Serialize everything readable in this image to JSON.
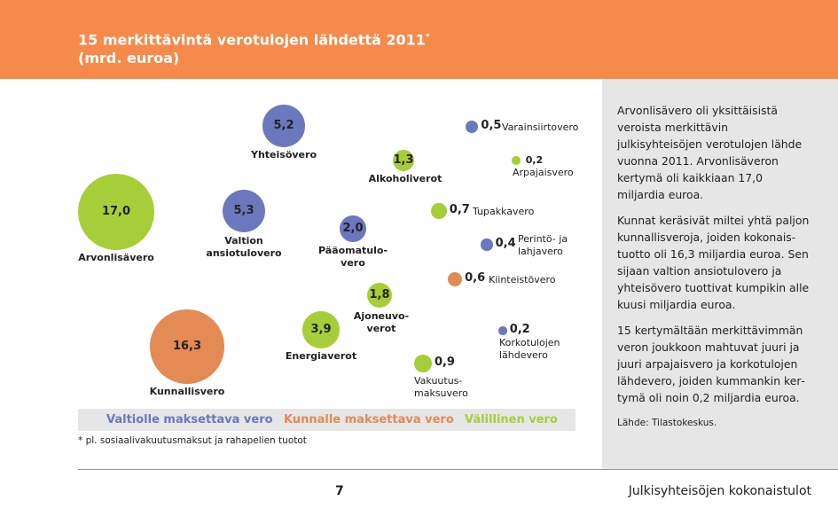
{
  "header": {
    "title_line1": "15 merkittävintä verotulojen lähdettä 2011",
    "title_mark": "*",
    "title_line2": "(mrd. euroa)"
  },
  "colors": {
    "header": "#F58A4B",
    "state": "#6B78BE",
    "municipal": "#E38A55",
    "indirect": "#A6CE39",
    "sidebar": "#E6E6E6"
  },
  "chart_data": {
    "type": "bubble",
    "unit": "mrd. euroa",
    "items": [
      {
        "name": "Arvonlisävero",
        "value": 17.0,
        "label": "17,0",
        "category": "indirect"
      },
      {
        "name": "Kunnallisvero",
        "value": 16.3,
        "label": "16,3",
        "category": "municipal"
      },
      {
        "name": "Valtion ansiotulovero",
        "value": 5.3,
        "label": "5,3",
        "category": "state"
      },
      {
        "name": "Yhteisövero",
        "value": 5.2,
        "label": "5,2",
        "category": "state"
      },
      {
        "name": "Energiaverot",
        "value": 3.9,
        "label": "3,9",
        "category": "indirect"
      },
      {
        "name": "Pääomatulovero",
        "value": 2.0,
        "label": "2,0",
        "category": "state"
      },
      {
        "name": "Ajoneuvoverot",
        "value": 1.8,
        "label": "1,8",
        "category": "indirect"
      },
      {
        "name": "Alkoholiverot",
        "value": 1.3,
        "label": "1,3",
        "category": "indirect"
      },
      {
        "name": "Vakuutusmaksuvero",
        "value": 0.9,
        "label": "0,9",
        "category": "indirect"
      },
      {
        "name": "Tupakkavero",
        "value": 0.7,
        "label": "0,7",
        "category": "indirect"
      },
      {
        "name": "Kiinteistövero",
        "value": 0.6,
        "label": "0,6",
        "category": "municipal"
      },
      {
        "name": "Varainsiirtovero",
        "value": 0.5,
        "label": "0,5",
        "category": "state"
      },
      {
        "name": "Perintö- ja lahjavero",
        "value": 0.4,
        "label": "0,4",
        "category": "state"
      },
      {
        "name": "Arpajaisvero",
        "value": 0.2,
        "label": "0,2",
        "category": "indirect"
      },
      {
        "name": "Korkotulojen lähdevero",
        "value": 0.2,
        "label": "0,2",
        "category": "state"
      }
    ],
    "display_names": [
      "Arvonlisävero",
      "Kunnallisvero",
      "Valtion\nansiotulovero",
      "Yhteisövero",
      "Energiaverot",
      "Pääomatulo-\nvero",
      "Ajoneuvo-\nverot",
      "Alkoholiverot",
      "Vakuutus-\nmaksuvero",
      "Tupakkavero",
      "Kiinteistövero",
      "Varainsiirtovero",
      "Perintö- ja\nlahjavero",
      "Arpajaisvero",
      "Korkotulojen\nlähdevero"
    ],
    "legend": [
      {
        "label": "Valtiolle maksettava vero",
        "category": "state"
      },
      {
        "label": "Kunnalle maksettava vero",
        "category": "municipal"
      },
      {
        "label": "Välillinen vero",
        "category": "indirect"
      }
    ]
  },
  "footnote": "* pl. sosiaalivakuutusmaksut ja rahapelien tuotot",
  "sidebar": {
    "paragraphs": [
      "Arvonlisävero oli yksittäisistä verois­ta merkittävin julkisyhteisöjen vero­tulojen lähde vuonna 2011. Arvon­lisäveron kertymä oli kaikkiaan 17,0 miljardia euroa.",
      "Kunnat keräsivät miltei yhtä paljon kunnallisveroja, joiden kokonais­tuotto oli 16,3 miljardia euroa. Sen sijaan valtion ansiotulovero ja yhtei­sövero tuottivat kumpikin alle kuusi miljardia euroa.",
      "15 kertymältään merkittävimmän veron joukkoon mahtuvat juuri ja juuri arpajaisvero ja korkotulojen lähdevero, joiden kummankin ker­tymä oli noin 0,2 miljardia euroa."
    ],
    "source": "Lähde: Tilastokeskus."
  },
  "footer": {
    "page": "7",
    "title": "Julkisyhteisöjen kokonaistulot"
  }
}
